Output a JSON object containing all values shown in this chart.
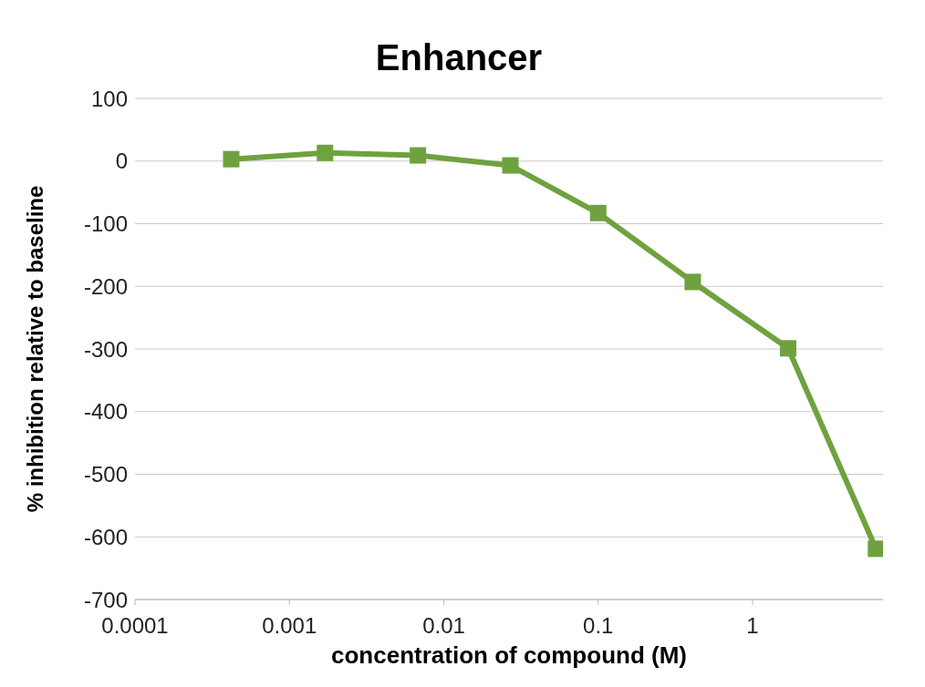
{
  "chart_data": {
    "type": "line",
    "title": "Enhancer",
    "xlabel": "concentration of compound (M)",
    "ylabel": "% inhibition relative to baseline",
    "x": [
      0.00042,
      0.0017,
      0.0068,
      0.027,
      0.1,
      0.41,
      1.7,
      6.3
    ],
    "series": [
      {
        "color": "#6fa23f",
        "values": [
          3,
          13,
          9,
          -7,
          -83,
          -193,
          -299,
          -619
        ]
      }
    ],
    "log": "x",
    "xlim": [
      0.0001,
      7
    ],
    "xticks": [
      0.0001,
      0.001,
      0.01,
      0.1,
      1
    ],
    "ylim": [
      -700,
      100
    ],
    "yticks": [
      -700,
      -600,
      -500,
      -400,
      -300,
      -200,
      -100,
      0,
      100
    ],
    "grid": "y",
    "marker": "square",
    "line_style": "solid",
    "legend": false
  }
}
